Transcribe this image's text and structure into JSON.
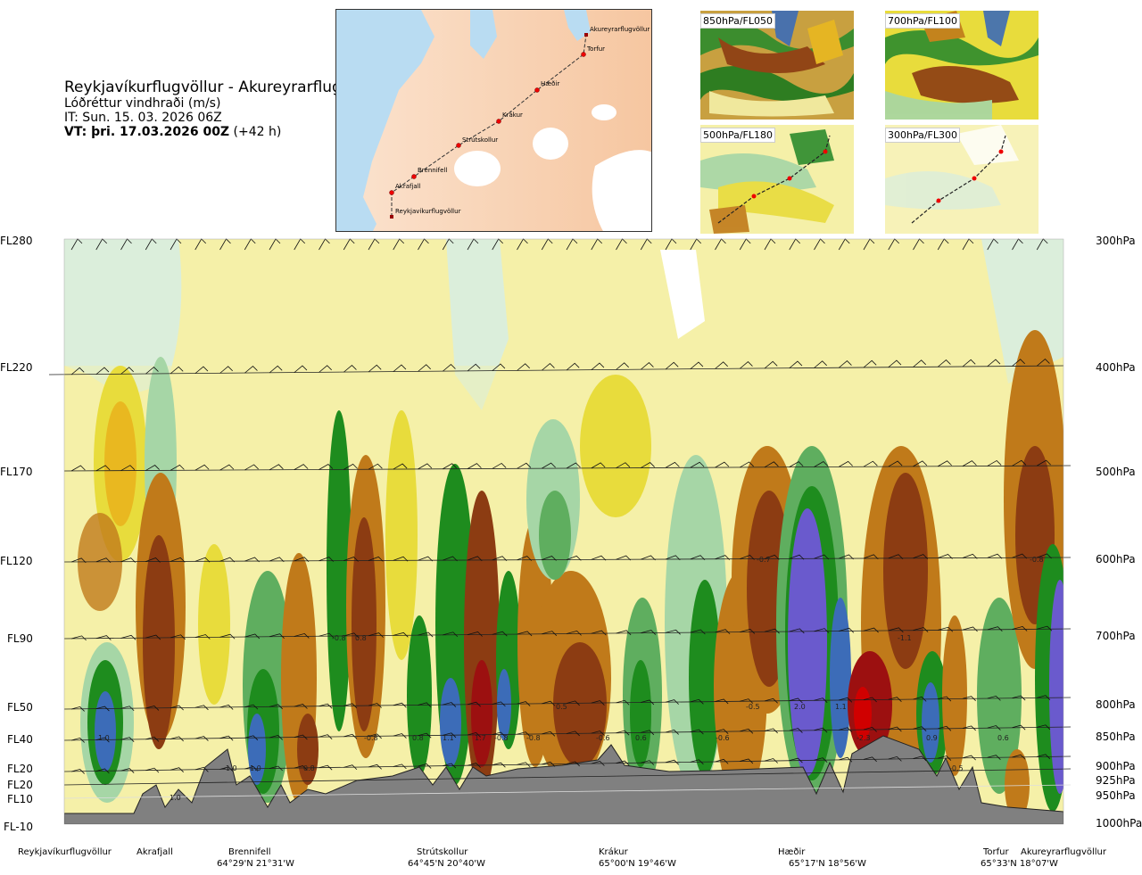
{
  "header": {
    "route": "Reykjavíkurflugvöllur - Akureyrarflugvöllur",
    "parameter": "Lóðréttur vindhraði (m/s)",
    "issue_time": "IT: Sun. 15. 03. 2026 06Z",
    "valid_time_bold": "VT: þri. 17.03.2026 00Z",
    "valid_time_offset": "(+42 h)"
  },
  "map": {
    "places": [
      "Akureyrarflugvöllur",
      "Torfur",
      "Hæðir",
      "Krákur",
      "Strútskollur",
      "Brennifell",
      "Akrafjall",
      "Reykjavíkurflugvöllur"
    ]
  },
  "insets": [
    {
      "label": "850hPa/FL050"
    },
    {
      "label": "700hPa/FL100"
    },
    {
      "label": "500hPa/FL180"
    },
    {
      "label": "300hPa/FL300"
    }
  ],
  "axes": {
    "fl_labels": [
      "FL280",
      "FL220",
      "FL170",
      "FL120",
      "FL90",
      "FL50",
      "FL40",
      "FL20",
      "FL20",
      "FL10",
      "FL-10"
    ],
    "hpa_labels": [
      "300hPa",
      "400hPa",
      "500hPa",
      "600hPa",
      "700hPa",
      "800hPa",
      "850hPa",
      "900hPa",
      "925hPa",
      "950hPa",
      "1000hPa"
    ]
  },
  "route_points": [
    {
      "name": "Reykjavíkurflugvöllur",
      "coord": ""
    },
    {
      "name": "Akrafjall",
      "coord": ""
    },
    {
      "name": "Brennifell",
      "coord": "64°29'N 21°31'W"
    },
    {
      "name": "Strútskollur",
      "coord": "64°45'N 20°40'W"
    },
    {
      "name": "Krákur",
      "coord": "65°00'N 19°46'W"
    },
    {
      "name": "Hæðir",
      "coord": "65°17'N 18°56'W"
    },
    {
      "name": "Torfur",
      "coord": "65°33'N 18°07'W"
    },
    {
      "name": "Akureyrarflugvöllur",
      "coord": ""
    }
  ],
  "chart_data": {
    "type": "heatmap",
    "title": "Reykjavíkurflugvöllur - Akureyrarflugvöllur",
    "variable": "Lóðréttur vindhraði (m/s)",
    "y_axis_left": [
      "FL280",
      "FL220",
      "FL170",
      "FL120",
      "FL90",
      "FL50",
      "FL40",
      "FL20",
      "FL20",
      "FL10",
      "FL-10"
    ],
    "y_axis_right": [
      "300hPa",
      "400hPa",
      "500hPa",
      "600hPa",
      "700hPa",
      "800hPa",
      "850hPa",
      "900hPa",
      "925hPa",
      "950hPa",
      "1000hPa"
    ],
    "x_points": [
      "Reykjavíkurflugvöllur",
      "Akrafjall",
      "Brennifell",
      "Strútskollur",
      "Krákur",
      "Hæðir",
      "Torfur",
      "Akureyrarflugvöllur"
    ],
    "color_scale": {
      "positive": [
        "#f5f0a8",
        "#e8dc3c",
        "#e9b820",
        "#c07a1a",
        "#8c3c12",
        "#9c1010",
        "#d00000"
      ],
      "negative": [
        "#dbeedb",
        "#a6d6a6",
        "#5fae5f",
        "#1e8c1e",
        "#3c6cb8",
        "#6a5acd"
      ],
      "terrain": "#808080"
    },
    "annotations": [
      {
        "text": "1.0",
        "pos": "Reykjavíkurflugvöllur 850hPa"
      },
      {
        "text": "1.0",
        "pos": "Akrafjall 950hPa"
      },
      {
        "text": "-1.0",
        "pos": "Brennifell 900hPa"
      },
      {
        "text": "1.0",
        "pos": "Brennifell 900hPa"
      },
      {
        "text": "0.8",
        "pos": "900hPa"
      },
      {
        "text": "-0.8",
        "pos": "700hPa"
      },
      {
        "text": "0.8",
        "pos": "700hPa"
      },
      {
        "text": "-0.8",
        "pos": "850hPa"
      },
      {
        "text": "0.8",
        "pos": "Strútskollur 850hPa"
      },
      {
        "text": "1.1",
        "pos": "Strútskollur 850hPa"
      },
      {
        "text": "1.7",
        "pos": "850hPa"
      },
      {
        "text": "-0.8",
        "pos": "850hPa"
      },
      {
        "text": "-0.8",
        "pos": "850hPa"
      },
      {
        "text": "0.5",
        "pos": "800hPa"
      },
      {
        "text": "-0.6",
        "pos": "Krákur 850hPa"
      },
      {
        "text": "0.6",
        "pos": "850hPa"
      },
      {
        "text": "-0.6",
        "pos": "850hPa"
      },
      {
        "text": "-0.5",
        "pos": "800hPa"
      },
      {
        "text": "2.0",
        "pos": "Hæðir 800hPa"
      },
      {
        "text": "-0.7",
        "pos": "600hPa"
      },
      {
        "text": "1.1",
        "pos": "800hPa"
      },
      {
        "text": "-2.3",
        "pos": "850hPa"
      },
      {
        "text": "-1.1",
        "pos": "700hPa"
      },
      {
        "text": "0.9",
        "pos": "850hPa"
      },
      {
        "text": "-0.5",
        "pos": "Torfur 900hPa"
      },
      {
        "text": "0.6",
        "pos": "850hPa"
      },
      {
        "text": "-0.8",
        "pos": "Akureyrarflugvöllur 600hPa"
      }
    ]
  }
}
